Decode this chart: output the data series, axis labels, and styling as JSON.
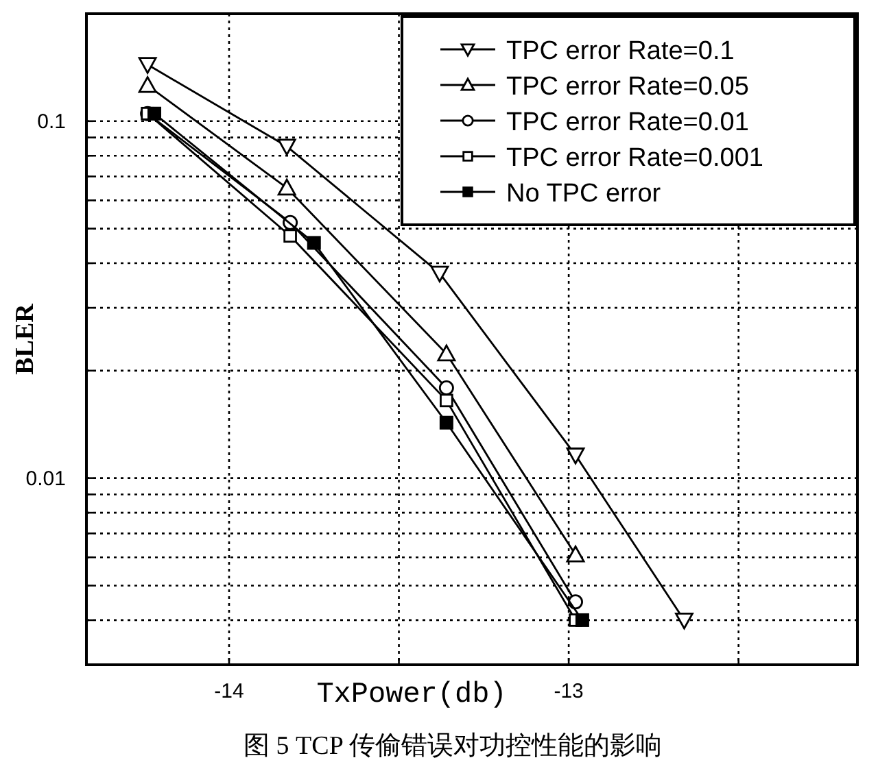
{
  "chart_data": {
    "type": "line",
    "xlabel": "TxPower(db)",
    "ylabel": "BLER",
    "log": "y",
    "grid": true,
    "legend": "top right",
    "line_style": "solid",
    "xlim": [
      -14.42,
      -12.15
    ],
    "xticks": [
      -14,
      {
        "value": -13.5,
        "label": null
      },
      -13,
      {
        "value": -12.5,
        "label": null
      }
    ],
    "ylim": [
      0.003,
      0.2
    ],
    "yticks": [
      {
        "value": 0.003,
        "label": null
      },
      {
        "value": 0.004,
        "label": null
      },
      {
        "value": 0.005,
        "label": null
      },
      {
        "value": 0.006,
        "label": null
      },
      {
        "value": 0.007,
        "label": null
      },
      {
        "value": 0.008,
        "label": null
      },
      {
        "value": 0.009,
        "label": null
      },
      0.01,
      {
        "value": 0.02,
        "label": null
      },
      {
        "value": 0.03,
        "label": null
      },
      {
        "value": 0.04,
        "label": null
      },
      {
        "value": 0.05,
        "label": null
      },
      {
        "value": 0.06,
        "label": null
      },
      {
        "value": 0.07,
        "label": null
      },
      {
        "value": 0.08,
        "label": null
      },
      {
        "value": 0.09,
        "label": null
      },
      0.1,
      {
        "value": 0.2,
        "label": null
      }
    ],
    "series": [
      {
        "name": "TPC error Rate=0.1",
        "color": "#000000",
        "marker": "triangle-down",
        "x": [
          -14.24,
          -13.83,
          -13.38,
          -12.98,
          -12.66
        ],
        "values": [
          0.144,
          0.085,
          0.0375,
          0.0116,
          0.004
        ]
      },
      {
        "name": "TPC error Rate=0.05",
        "color": "#000000",
        "marker": "triangle",
        "x": [
          -14.24,
          -13.83,
          -13.36,
          -12.98
        ],
        "values": [
          0.126,
          0.065,
          0.0223,
          0.0061
        ]
      },
      {
        "name": "TPC error Rate=0.01",
        "color": "#000000",
        "marker": "circle",
        "x": [
          -14.24,
          -13.82,
          -13.36,
          -12.98
        ],
        "values": [
          0.105,
          0.052,
          0.0179,
          0.0045
        ]
      },
      {
        "name": "TPC error Rate=0.001",
        "color": "#000000",
        "marker": "square",
        "x": [
          -14.24,
          -13.82,
          -13.36,
          -12.98
        ],
        "values": [
          0.105,
          0.0477,
          0.0165,
          0.004
        ]
      },
      {
        "name": "No TPC error",
        "color": "#000000",
        "marker": "square",
        "x": [
          -14.22,
          -13.75,
          -13.36,
          -12.96
        ],
        "values": [
          0.105,
          0.0456,
          0.0143,
          0.004
        ]
      }
    ],
    "annotations": [
      "图 5 TCP 传偷错误对功控性能的影响"
    ]
  }
}
